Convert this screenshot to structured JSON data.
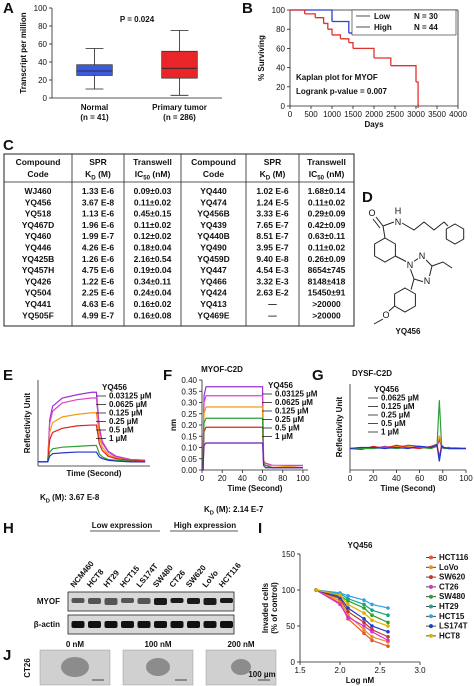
{
  "chart_data": [
    {
      "panel": "A",
      "type": "box",
      "title": "P = 0.024",
      "y_label": "Transcript per million",
      "categories": [
        "Normal",
        "Primary tumor"
      ],
      "category_notes": [
        "(n = 41)",
        "(n = 286)"
      ],
      "colors": [
        "#3b5bdb",
        "#e8262a"
      ],
      "whisker_low": [
        10,
        3
      ],
      "q1": [
        25,
        22
      ],
      "median": [
        30,
        33
      ],
      "q3": [
        37,
        52
      ],
      "whisker_high": [
        55,
        75
      ],
      "ylim": [
        0,
        100
      ],
      "yticks": [
        0,
        20,
        40,
        60,
        80,
        100
      ]
    },
    {
      "panel": "B",
      "type": "step",
      "title": "Kaplan plot for MYOF",
      "annotation": "Logrank p-value = 0.007",
      "x_label": "Days",
      "y_label": "% Surviving",
      "frame": true,
      "legend": "upper right",
      "xlim": [
        0,
        4000
      ],
      "xticks": [
        0,
        500,
        1000,
        1500,
        2000,
        2500,
        3000,
        3500,
        4000
      ],
      "ylim": [
        0,
        100
      ],
      "yticks": [
        0,
        20,
        40,
        60,
        80,
        100
      ],
      "series": [
        {
          "name": "Low",
          "note": "N = 30",
          "color": "#2f3fd6",
          "x": [
            0,
            1000,
            1400,
            3600
          ],
          "values": [
            100,
            88,
            76,
            76
          ]
        },
        {
          "name": "High",
          "note": "N = 44",
          "color": "#e0322b",
          "x": [
            0,
            350,
            600,
            800,
            900,
            1000,
            1200,
            1400,
            1500,
            2000,
            2400,
            3000,
            3050
          ],
          "values": [
            100,
            96,
            92,
            86,
            80,
            74,
            70,
            66,
            60,
            50,
            42,
            25,
            0
          ]
        }
      ]
    },
    {
      "panel": "E",
      "type": "line",
      "y_label": "Reflectivity Unit",
      "x_label": "Time (Second)",
      "legend_title": "YQ456",
      "kd_label": {
        "main": "K",
        "sub": "D",
        "rest": " (M): 3.67 E-8"
      },
      "xlim": [
        0,
        115
      ],
      "ylim": [
        -5,
        100
      ],
      "x": [
        0,
        10,
        12,
        15,
        25,
        40,
        55,
        60,
        63,
        66,
        72,
        80,
        95,
        110
      ],
      "series": [
        {
          "name": "0.03125 µM",
          "color": "#9b30d9",
          "values": [
            0,
            0,
            51,
            68,
            78,
            82,
            85,
            85,
            42,
            25,
            13,
            7,
            3,
            2
          ]
        },
        {
          "name": "0.0625 µM",
          "color": "#e040c8",
          "values": [
            0,
            0,
            47,
            62,
            72,
            76,
            78,
            78,
            39,
            23,
            12,
            6,
            3,
            2
          ]
        },
        {
          "name": "0.125 µM",
          "color": "#f39c12",
          "values": [
            0,
            0,
            36,
            48,
            55,
            58,
            60,
            60,
            30,
            18,
            9,
            5,
            2,
            1
          ]
        },
        {
          "name": "0.25 µM",
          "color": "#e02020",
          "values": [
            0,
            0,
            27,
            36,
            41,
            44,
            45,
            45,
            22,
            14,
            7,
            4,
            2,
            1
          ]
        },
        {
          "name": "0.5 µM",
          "color": "#2e9e3a",
          "values": [
            0,
            0,
            12,
            16,
            18,
            19,
            20,
            20,
            10,
            6,
            3,
            2,
            1,
            0
          ]
        },
        {
          "name": "1 µM",
          "color": "#2233cc",
          "values": [
            0,
            0,
            7,
            10,
            11,
            12,
            12,
            12,
            6,
            4,
            2,
            1,
            0,
            0
          ]
        }
      ]
    },
    {
      "panel": "F",
      "type": "line",
      "title": "MYOF-C2D",
      "y_label": "nm",
      "x_label": "Time (Second)",
      "legend_title": "YQ456",
      "kd_label": {
        "main": "K",
        "sub": "D",
        "rest": " (M): 2.14 E-7"
      },
      "xlim": [
        0,
        105
      ],
      "xticks": [
        0,
        20,
        40,
        60,
        80,
        100
      ],
      "ylim": [
        0,
        0.4
      ],
      "yticks": [
        {
          "value": 0,
          "label": "0.00"
        },
        0.05,
        {
          "value": 0.1,
          "label": "0.10"
        },
        0.15,
        {
          "value": 0.2,
          "label": "0.20"
        },
        0.25,
        {
          "value": 0.3,
          "label": "0.30"
        },
        0.35,
        {
          "value": 0.4,
          "label": "0.40"
        }
      ],
      "x": [
        0,
        1,
        2,
        4,
        30,
        58,
        60,
        61,
        63,
        70,
        100
      ],
      "series": [
        {
          "name": "0.03125 µM",
          "color": "#9b30d9",
          "values": [
            0,
            0,
            0.33,
            0.37,
            0.37,
            0.37,
            0.37,
            0.04,
            0.03,
            0.02,
            0.02
          ]
        },
        {
          "name": "0.0625 µM",
          "color": "#e040c8",
          "values": [
            0,
            0,
            0.3,
            0.33,
            0.33,
            0.33,
            0.33,
            0.04,
            0.03,
            0.02,
            0.02
          ]
        },
        {
          "name": "0.125 µM",
          "color": "#f39c12",
          "values": [
            0,
            0,
            0.25,
            0.28,
            0.28,
            0.28,
            0.28,
            0.03,
            0.02,
            0.02,
            0.01
          ]
        },
        {
          "name": "0.25 µM",
          "color": "#e02020",
          "values": [
            0,
            0,
            0.17,
            0.19,
            0.19,
            0.19,
            0.19,
            0.03,
            0.02,
            0.01,
            0.01
          ]
        },
        {
          "name": "0.5 µM",
          "color": "#2e9e3a",
          "values": [
            0,
            0,
            0.21,
            0.23,
            0.23,
            0.23,
            0.23,
            0.03,
            0.02,
            0.01,
            0.01
          ]
        },
        {
          "name": "1 µM",
          "color": "#6a1fb0",
          "values": [
            0,
            0,
            0.11,
            0.12,
            0.12,
            0.12,
            0.12,
            0.02,
            0.01,
            0.01,
            0.01
          ]
        }
      ]
    },
    {
      "panel": "G",
      "type": "line",
      "title": "DYSF-C2D",
      "y_label": "Reflectivity Unit",
      "x_label": "Time (Second)",
      "legend_title": "YQ456",
      "xlim": [
        0,
        100
      ],
      "xticks": [
        0,
        20,
        40,
        60,
        80,
        100
      ],
      "ylim": [
        -20,
        60
      ],
      "x": [
        0,
        10,
        20,
        30,
        40,
        50,
        60,
        70,
        75,
        77,
        79,
        81,
        85,
        90,
        100
      ],
      "series": [
        {
          "name": "0.0625 µM",
          "color": "#9b30d9",
          "values": [
            0,
            1,
            0,
            2,
            1,
            3,
            2,
            1,
            2,
            8,
            1,
            0,
            1,
            0,
            0
          ]
        },
        {
          "name": "0.125 µM",
          "color": "#f39c12",
          "values": [
            0,
            0,
            1,
            1,
            2,
            2,
            1,
            0,
            3,
            12,
            2,
            1,
            0,
            1,
            0
          ]
        },
        {
          "name": "0.25 µM",
          "color": "#e02020",
          "values": [
            0,
            -1,
            2,
            0,
            3,
            1,
            0,
            2,
            4,
            -8,
            3,
            1,
            0,
            0,
            0
          ]
        },
        {
          "name": "0.5 µM",
          "color": "#2e9e3a",
          "values": [
            0,
            0,
            0,
            1,
            0,
            1,
            1,
            0,
            2,
            45,
            2,
            0,
            0,
            0,
            0
          ]
        },
        {
          "name": "1 µM",
          "color": "#2233cc",
          "values": [
            0,
            1,
            1,
            0,
            1,
            0,
            2,
            1,
            3,
            -12,
            2,
            1,
            0,
            0,
            0
          ]
        }
      ]
    },
    {
      "panel": "I",
      "type": "line",
      "title": "YQ456",
      "markers": true,
      "legend": "right",
      "y_label": [
        "Invaded cells",
        "(% of control)"
      ],
      "x_label": "Log nM",
      "xlim": [
        1.5,
        3.0
      ],
      "xticks": [
        1.5,
        {
          "value": 2,
          "label": "2.0"
        },
        2.5,
        {
          "value": 3,
          "label": "3.0"
        }
      ],
      "ylim": [
        0,
        150
      ],
      "yticks": [
        0,
        50,
        100,
        150
      ],
      "x": [
        1.7,
        2.0,
        2.1,
        2.3,
        2.4,
        2.6
      ],
      "series": [
        {
          "name": "HCT116",
          "color": "#e8552b",
          "values": [
            100,
            82,
            60,
            40,
            30,
            22
          ]
        },
        {
          "name": "LoVo",
          "color": "#f08c1e",
          "values": [
            100,
            85,
            65,
            45,
            35,
            28
          ]
        },
        {
          "name": "SW620",
          "color": "#c0392b",
          "values": [
            100,
            88,
            70,
            55,
            45,
            35
          ]
        },
        {
          "name": "CT26",
          "color": "#d62fd6",
          "values": [
            100,
            80,
            62,
            50,
            42,
            30
          ]
        },
        {
          "name": "SW480",
          "color": "#2ca02c",
          "values": [
            100,
            92,
            85,
            75,
            65,
            55
          ]
        },
        {
          "name": "HT29",
          "color": "#17a589",
          "values": [
            100,
            95,
            88,
            80,
            72,
            65
          ]
        },
        {
          "name": "HCT15",
          "color": "#2fa4e7",
          "values": [
            100,
            96,
            92,
            86,
            80,
            75
          ]
        },
        {
          "name": "LS174T",
          "color": "#1f3fbf",
          "values": [
            100,
            90,
            75,
            60,
            50,
            42
          ]
        },
        {
          "name": "HCT8",
          "color": "#e0b000",
          "values": [
            100,
            93,
            80,
            68,
            58,
            50
          ]
        }
      ]
    }
  ],
  "table": {
    "panel": "C",
    "header": [
      {
        "line1": "Compound",
        "line2": "Code"
      },
      {
        "line1": "SPR",
        "line2": {
          "main": "K",
          "sub": "D",
          "rest": " (M)"
        }
      },
      {
        "line1": "Transwell",
        "line2": {
          "main": "IC",
          "sub": "50",
          "rest": " (nM)"
        }
      },
      {
        "line1": "Compound",
        "line2": "Code"
      },
      {
        "line1": "SPR",
        "line2": {
          "main": "K",
          "sub": "D",
          "rest": " (M)"
        }
      },
      {
        "line1": "Transwell",
        "line2": {
          "main": "IC",
          "sub": "50",
          "rest": " (nM)"
        }
      }
    ],
    "rows": [
      [
        "WJ460",
        "1.33 E-6",
        "0.09±0.03",
        "YQ440",
        "1.02 E-6",
        "1.68±0.14"
      ],
      [
        "YQ456",
        "3.67 E-8",
        "0.11±0.02",
        "YQ474",
        "1.24 E-5",
        "0.11±0.02"
      ],
      [
        "YQ518",
        "1.13 E-6",
        "0.45±0.15",
        "YQ456B",
        "3.33 E-6",
        "0.29±0.09"
      ],
      [
        "YQ467D",
        "1.96 E-6",
        "0.11±0.02",
        "YQ439",
        "7.65 E-7",
        "0.42±0.09"
      ],
      [
        "YQ460",
        "1.99 E-7",
        "0.12±0.02",
        "YQ440B",
        "8.51 E-7",
        "0.63±0.11"
      ],
      [
        "YQ446",
        "4.26 E-6",
        "0.18±0.04",
        "YQ490",
        "3.95 E-7",
        "0.11±0.02"
      ],
      [
        "YQ425B",
        "1.26 E-6",
        "2.16±0.54",
        "YQ459D",
        "9.40 E-8",
        "0.26±0.09"
      ],
      [
        "YQ457H",
        "4.75 E-6",
        "0.19±0.04",
        "YQ447",
        "4.54 E-3",
        "8654±745"
      ],
      [
        "YQ426",
        "1.22 E-6",
        "0.34±0.11",
        "YQ466",
        "3.32 E-3",
        "8148±418"
      ],
      [
        "YQ504",
        "2.25 E-6",
        "0.24±0.04",
        "YQ424",
        "2.63 E-2",
        "15450±91"
      ],
      [
        "YQ441",
        "4.63 E-6",
        "0.16±0.02",
        "YQ413",
        "—",
        ">20000"
      ],
      [
        "YQ505F",
        "4.99 E-7",
        "0.16±0.08",
        "YQ469E",
        "—",
        ">20000"
      ]
    ]
  },
  "structure": {
    "panel": "D",
    "label": "YQ456",
    "atoms": [
      "O",
      "N",
      "H",
      "N",
      "N",
      "N",
      "O"
    ]
  },
  "blot": {
    "panel": "H",
    "groups": [
      "Low expression",
      "High expression"
    ],
    "lanes": [
      "NCM460",
      "HCT8",
      "HT29",
      "HCT15",
      "LS174T",
      "SW480",
      "CT26",
      "SW620",
      "LoVo",
      "HCT116"
    ],
    "rows": [
      "MYOF",
      "β-actin"
    ]
  },
  "micrographs": {
    "panel": "J",
    "row_label": "CT26",
    "conditions": [
      "0 nM",
      "100 nM",
      "200 nM"
    ],
    "scale_bar": "100 µm"
  }
}
